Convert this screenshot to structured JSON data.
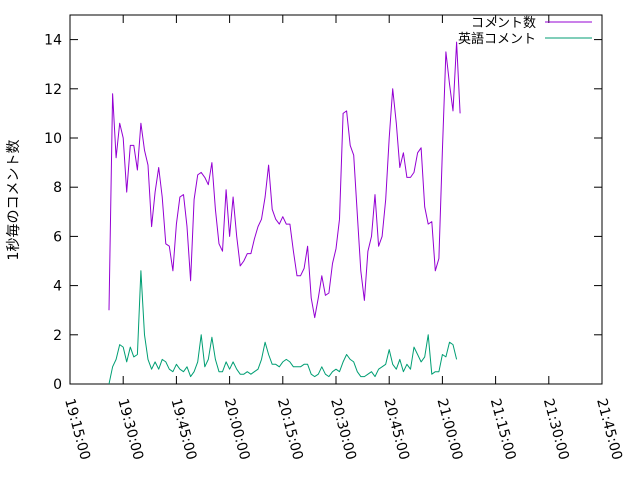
{
  "chart_data": {
    "type": "line",
    "title": "",
    "xlabel": "",
    "ylabel": "1秒毎のコメント数",
    "xlim": [
      "19:15:00",
      "21:45:00"
    ],
    "ylim": [
      0,
      15
    ],
    "x_ticks": [
      "19:15:00",
      "19:30:00",
      "19:45:00",
      "20:00:00",
      "20:15:00",
      "20:30:00",
      "20:45:00",
      "21:00:00",
      "21:15:00",
      "21:30:00",
      "21:45:00"
    ],
    "y_ticks": [
      "0",
      "2",
      "4",
      "6",
      "8",
      "10",
      "12",
      "14"
    ],
    "grid": false,
    "legend": "top-right",
    "series": [
      {
        "name": "コメント数",
        "color": "#9400d3",
        "points": [
          [
            "19:26:00",
            3.0
          ],
          [
            "19:27:00",
            11.8
          ],
          [
            "19:28:00",
            9.2
          ],
          [
            "19:29:00",
            10.6
          ],
          [
            "19:30:00",
            10.0
          ],
          [
            "19:31:00",
            7.8
          ],
          [
            "19:32:00",
            9.7
          ],
          [
            "19:33:00",
            9.7
          ],
          [
            "19:34:00",
            8.7
          ],
          [
            "19:35:00",
            10.6
          ],
          [
            "19:36:00",
            9.5
          ],
          [
            "19:37:00",
            8.9
          ],
          [
            "19:38:00",
            6.4
          ],
          [
            "19:39:00",
            7.8
          ],
          [
            "19:40:00",
            8.8
          ],
          [
            "19:41:00",
            7.6
          ],
          [
            "19:42:00",
            5.7
          ],
          [
            "19:43:00",
            5.6
          ],
          [
            "19:44:00",
            4.6
          ],
          [
            "19:45:00",
            6.5
          ],
          [
            "19:46:00",
            7.6
          ],
          [
            "19:47:00",
            7.7
          ],
          [
            "19:48:00",
            6.4
          ],
          [
            "19:49:00",
            4.2
          ],
          [
            "19:50:00",
            7.5
          ],
          [
            "19:51:00",
            8.5
          ],
          [
            "19:52:00",
            8.6
          ],
          [
            "19:53:00",
            8.4
          ],
          [
            "19:54:00",
            8.1
          ],
          [
            "19:55:00",
            9.0
          ],
          [
            "19:56:00",
            7.1
          ],
          [
            "19:57:00",
            5.7
          ],
          [
            "19:58:00",
            5.4
          ],
          [
            "19:59:00",
            7.9
          ],
          [
            "20:00:00",
            6.0
          ],
          [
            "20:01:00",
            7.6
          ],
          [
            "20:02:00",
            6.0
          ],
          [
            "20:03:00",
            4.8
          ],
          [
            "20:04:00",
            5.0
          ],
          [
            "20:05:00",
            5.3
          ],
          [
            "20:06:00",
            5.3
          ],
          [
            "20:07:00",
            5.9
          ],
          [
            "20:08:00",
            6.4
          ],
          [
            "20:09:00",
            6.7
          ],
          [
            "20:10:00",
            7.6
          ],
          [
            "20:11:00",
            8.9
          ],
          [
            "20:12:00",
            7.1
          ],
          [
            "20:13:00",
            6.7
          ],
          [
            "20:14:00",
            6.5
          ],
          [
            "20:15:00",
            6.8
          ],
          [
            "20:16:00",
            6.5
          ],
          [
            "20:17:00",
            6.5
          ],
          [
            "20:18:00",
            5.4
          ],
          [
            "20:19:00",
            4.4
          ],
          [
            "20:20:00",
            4.4
          ],
          [
            "20:21:00",
            4.7
          ],
          [
            "20:22:00",
            5.6
          ],
          [
            "20:23:00",
            3.5
          ],
          [
            "20:24:00",
            2.7
          ],
          [
            "20:25:00",
            3.5
          ],
          [
            "20:26:00",
            4.4
          ],
          [
            "20:27:00",
            3.6
          ],
          [
            "20:28:00",
            3.7
          ],
          [
            "20:29:00",
            4.9
          ],
          [
            "20:30:00",
            5.5
          ],
          [
            "20:31:00",
            6.7
          ],
          [
            "20:32:00",
            11.0
          ],
          [
            "20:33:00",
            11.1
          ],
          [
            "20:34:00",
            9.7
          ],
          [
            "20:35:00",
            9.3
          ],
          [
            "20:36:00",
            6.9
          ],
          [
            "20:37:00",
            4.6
          ],
          [
            "20:38:00",
            3.4
          ],
          [
            "20:39:00",
            5.4
          ],
          [
            "20:40:00",
            6.0
          ],
          [
            "20:41:00",
            7.7
          ],
          [
            "20:42:00",
            5.6
          ],
          [
            "20:43:00",
            6.0
          ],
          [
            "20:44:00",
            7.5
          ],
          [
            "20:45:00",
            10.0
          ],
          [
            "20:46:00",
            12.0
          ],
          [
            "20:47:00",
            10.6
          ],
          [
            "20:48:00",
            8.8
          ],
          [
            "20:49:00",
            9.4
          ],
          [
            "20:50:00",
            8.4
          ],
          [
            "20:51:00",
            8.4
          ],
          [
            "20:52:00",
            8.6
          ],
          [
            "20:53:00",
            9.4
          ],
          [
            "20:54:00",
            9.6
          ],
          [
            "20:55:00",
            7.2
          ],
          [
            "20:56:00",
            6.5
          ],
          [
            "20:57:00",
            6.6
          ],
          [
            "20:58:00",
            4.6
          ],
          [
            "20:59:00",
            5.1
          ],
          [
            "21:00:00",
            9.5
          ],
          [
            "21:01:00",
            13.5
          ],
          [
            "21:02:00",
            12.2
          ],
          [
            "21:03:00",
            11.1
          ],
          [
            "21:04:00",
            13.9
          ],
          [
            "21:05:00",
            11.0
          ]
        ]
      },
      {
        "name": "英語コメント",
        "color": "#009e73",
        "points": [
          [
            "19:26:00",
            0.0
          ],
          [
            "19:27:00",
            0.7
          ],
          [
            "19:28:00",
            1.0
          ],
          [
            "19:29:00",
            1.6
          ],
          [
            "19:30:00",
            1.5
          ],
          [
            "19:31:00",
            0.9
          ],
          [
            "19:32:00",
            1.5
          ],
          [
            "19:33:00",
            1.1
          ],
          [
            "19:34:00",
            1.2
          ],
          [
            "19:35:00",
            4.6
          ],
          [
            "19:36:00",
            2.0
          ],
          [
            "19:37:00",
            1.0
          ],
          [
            "19:38:00",
            0.6
          ],
          [
            "19:39:00",
            0.9
          ],
          [
            "19:40:00",
            0.6
          ],
          [
            "19:41:00",
            1.0
          ],
          [
            "19:42:00",
            0.9
          ],
          [
            "19:43:00",
            0.6
          ],
          [
            "19:44:00",
            0.5
          ],
          [
            "19:45:00",
            0.8
          ],
          [
            "19:46:00",
            0.6
          ],
          [
            "19:47:00",
            0.5
          ],
          [
            "19:48:00",
            0.7
          ],
          [
            "19:49:00",
            0.3
          ],
          [
            "19:50:00",
            0.5
          ],
          [
            "19:51:00",
            0.9
          ],
          [
            "19:52:00",
            2.0
          ],
          [
            "19:53:00",
            0.7
          ],
          [
            "19:54:00",
            1.0
          ],
          [
            "19:55:00",
            1.9
          ],
          [
            "19:56:00",
            1.0
          ],
          [
            "19:57:00",
            0.5
          ],
          [
            "19:58:00",
            0.5
          ],
          [
            "19:59:00",
            0.9
          ],
          [
            "20:00:00",
            0.6
          ],
          [
            "20:01:00",
            0.9
          ],
          [
            "20:02:00",
            0.6
          ],
          [
            "20:03:00",
            0.4
          ],
          [
            "20:04:00",
            0.4
          ],
          [
            "20:05:00",
            0.5
          ],
          [
            "20:06:00",
            0.4
          ],
          [
            "20:07:00",
            0.5
          ],
          [
            "20:08:00",
            0.6
          ],
          [
            "20:09:00",
            1.0
          ],
          [
            "20:10:00",
            1.7
          ],
          [
            "20:11:00",
            1.2
          ],
          [
            "20:12:00",
            0.8
          ],
          [
            "20:13:00",
            0.8
          ],
          [
            "20:14:00",
            0.7
          ],
          [
            "20:15:00",
            0.9
          ],
          [
            "20:16:00",
            1.0
          ],
          [
            "20:17:00",
            0.9
          ],
          [
            "20:18:00",
            0.7
          ],
          [
            "20:19:00",
            0.7
          ],
          [
            "20:20:00",
            0.7
          ],
          [
            "20:21:00",
            0.8
          ],
          [
            "20:22:00",
            0.8
          ],
          [
            "20:23:00",
            0.4
          ],
          [
            "20:24:00",
            0.3
          ],
          [
            "20:25:00",
            0.4
          ],
          [
            "20:26:00",
            0.7
          ],
          [
            "20:27:00",
            0.4
          ],
          [
            "20:28:00",
            0.3
          ],
          [
            "20:29:00",
            0.5
          ],
          [
            "20:30:00",
            0.6
          ],
          [
            "20:31:00",
            0.5
          ],
          [
            "20:32:00",
            0.9
          ],
          [
            "20:33:00",
            1.2
          ],
          [
            "20:34:00",
            1.0
          ],
          [
            "20:35:00",
            0.9
          ],
          [
            "20:36:00",
            0.5
          ],
          [
            "20:37:00",
            0.3
          ],
          [
            "20:38:00",
            0.3
          ],
          [
            "20:39:00",
            0.4
          ],
          [
            "20:40:00",
            0.5
          ],
          [
            "20:41:00",
            0.3
          ],
          [
            "20:42:00",
            0.6
          ],
          [
            "20:43:00",
            0.7
          ],
          [
            "20:44:00",
            0.8
          ],
          [
            "20:45:00",
            1.4
          ],
          [
            "20:46:00",
            0.8
          ],
          [
            "20:47:00",
            0.6
          ],
          [
            "20:48:00",
            1.0
          ],
          [
            "20:49:00",
            0.5
          ],
          [
            "20:50:00",
            0.8
          ],
          [
            "20:51:00",
            0.6
          ],
          [
            "20:52:00",
            1.5
          ],
          [
            "20:53:00",
            1.2
          ],
          [
            "20:54:00",
            0.9
          ],
          [
            "20:55:00",
            1.1
          ],
          [
            "20:56:00",
            2.0
          ],
          [
            "20:57:00",
            0.4
          ],
          [
            "20:58:00",
            0.5
          ],
          [
            "20:59:00",
            0.5
          ],
          [
            "21:00:00",
            1.2
          ],
          [
            "21:01:00",
            1.1
          ],
          [
            "21:02:00",
            1.7
          ],
          [
            "21:03:00",
            1.6
          ],
          [
            "21:04:00",
            1.0
          ]
        ]
      }
    ]
  }
}
